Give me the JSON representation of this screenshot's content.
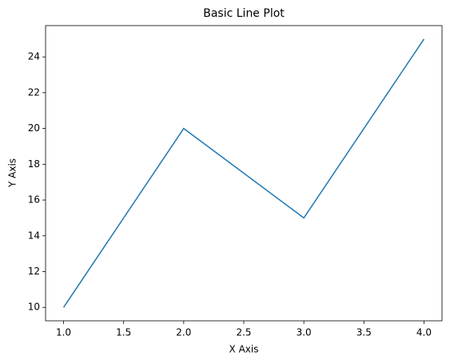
{
  "chart_data": {
    "type": "line",
    "title": "Basic Line Plot",
    "xlabel": "X Axis",
    "ylabel": "Y Axis",
    "x": [
      1,
      2,
      3,
      4
    ],
    "series": [
      {
        "color": "#1f77b4",
        "values": [
          10,
          20,
          15,
          25
        ]
      }
    ],
    "xlim": [
      0.85,
      4.15
    ],
    "xticks": [
      {
        "value": 1,
        "label": "1.0"
      },
      {
        "value": 1.5,
        "label": "1.5"
      },
      {
        "value": 2,
        "label": "2.0"
      },
      {
        "value": 2.5,
        "label": "2.5"
      },
      {
        "value": 3,
        "label": "3.0"
      },
      {
        "value": 3.5,
        "label": "3.5"
      },
      {
        "value": 4,
        "label": "4.0"
      }
    ],
    "ylim": [
      9.25,
      25.75
    ],
    "yticks": [
      10,
      12,
      14,
      16,
      18,
      20,
      22,
      24
    ],
    "grid": false
  }
}
